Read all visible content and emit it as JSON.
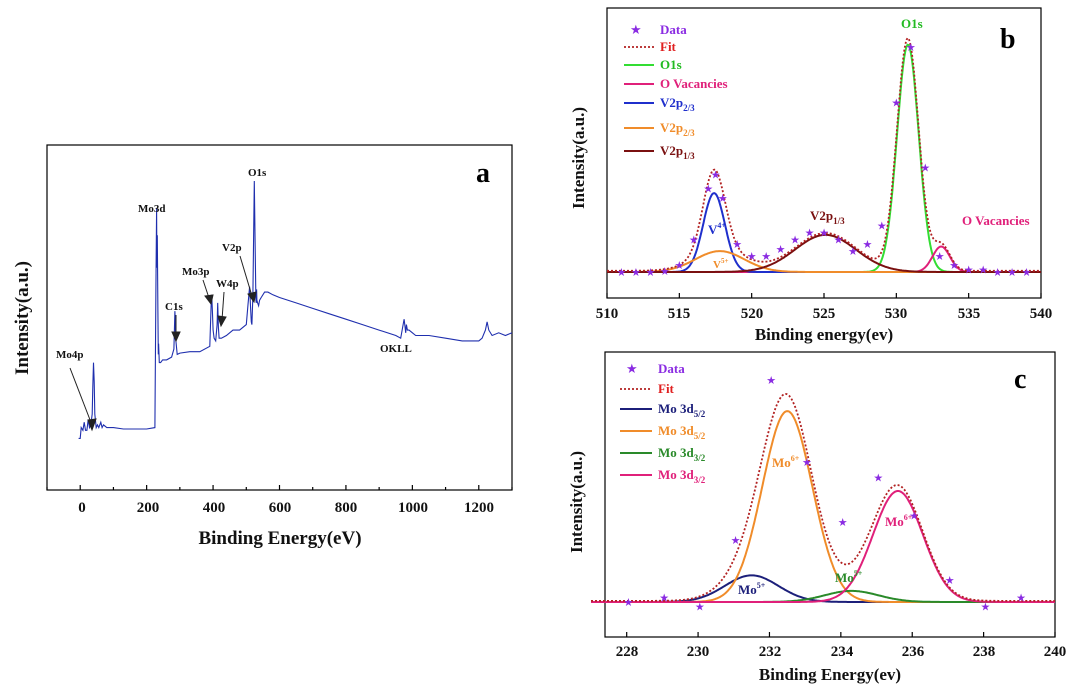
{
  "chart_data": [
    {
      "panel": "a",
      "type": "line",
      "xlabel": "Binding Energy(eV)",
      "ylabel": "Intensity(a.u.)",
      "xlim": [
        -100,
        1300
      ],
      "ylim": [
        0,
        100
      ],
      "xticks": [
        0,
        200,
        400,
        600,
        800,
        1000,
        1200
      ],
      "color": "#1f2fae",
      "series": [
        {
          "x": [
            -5,
            0,
            3,
            8,
            12,
            16,
            20,
            24,
            28,
            32,
            36,
            38,
            40,
            42,
            44,
            48,
            52,
            56,
            62,
            66,
            70,
            80,
            100,
            130,
            160,
            200,
            225,
            228,
            230,
            231,
            232,
            234,
            235,
            236,
            238,
            242,
            248,
            260,
            275,
            282,
            285,
            288,
            292,
            300,
            330,
            360,
            390,
            394,
            396,
            398,
            400,
            403,
            408,
            412,
            414,
            416,
            418,
            420,
            425,
            440,
            460,
            480,
            500,
            505,
            510,
            513,
            515,
            517,
            520,
            524,
            527,
            529,
            530,
            531,
            532,
            534,
            537,
            540,
            545,
            555,
            565,
            580,
            600,
            650,
            700,
            750,
            800,
            850,
            900,
            950,
            965,
            975,
            978,
            980,
            982,
            985,
            990,
            1000,
            1010,
            1050,
            1100,
            1150,
            1200,
            1210,
            1220,
            1225,
            1230,
            1240,
            1260,
            1280,
            1300
          ],
          "y": [
            5,
            5,
            9,
            8,
            11,
            8,
            8,
            12,
            9,
            10,
            14,
            24,
            33,
            26,
            14,
            9,
            10,
            9,
            11,
            9,
            10,
            9,
            9,
            8.5,
            8.5,
            8.5,
            9,
            60,
            90,
            68,
            80,
            52,
            36,
            40,
            33,
            33,
            34,
            34,
            35,
            38,
            52,
            41,
            36,
            36.5,
            37,
            37,
            39,
            54,
            58,
            52,
            45,
            42,
            41,
            47,
            55,
            46,
            42,
            42,
            42,
            43,
            45,
            45,
            47,
            54,
            61,
            53,
            48,
            47,
            58,
            100,
            72,
            56,
            55,
            60,
            56,
            55,
            54,
            56,
            57,
            59,
            59,
            58,
            57,
            55,
            53,
            51,
            49,
            47,
            45,
            43,
            42,
            49,
            46,
            44,
            47,
            45,
            45,
            44,
            43,
            43,
            42,
            41,
            41,
            42,
            45,
            48,
            45,
            43,
            44,
            43,
            44
          ]
        }
      ],
      "annotations": [
        "Mo4p",
        "Mo3d",
        "C1s",
        "Mo3p",
        "W4p",
        "V2p",
        "O1s",
        "OKLL"
      ]
    },
    {
      "panel": "b",
      "type": "line",
      "xlabel": "Binding energy(ev)",
      "ylabel": "Intensity(a.u.)",
      "xlim": [
        510,
        540
      ],
      "ylim": [
        0,
        100
      ],
      "xticks": [
        510,
        515,
        520,
        525,
        530,
        535,
        540
      ],
      "legend": [
        "Data",
        "Fit",
        "O1s",
        "O Vacancies",
        "V2p2/3",
        "V2p2/3",
        "V2p1/3"
      ],
      "data_points": {
        "x": [
          511,
          512,
          513,
          514,
          515,
          516,
          517,
          517.5,
          518,
          519,
          520,
          521,
          522,
          523,
          524,
          525,
          526,
          527,
          528,
          529,
          530,
          531,
          532,
          533,
          534,
          535,
          536,
          537,
          538,
          539
        ],
        "y": [
          0,
          0,
          0,
          0.5,
          3,
          14,
          36,
          42,
          32,
          12,
          7,
          7,
          10,
          14,
          17,
          17,
          14,
          9,
          12,
          20,
          73,
          97,
          45,
          7,
          3,
          1,
          1,
          0,
          0,
          0
        ]
      },
      "peaks": [
        {
          "name": "O1s",
          "color": "#33dd33",
          "center": 530.8,
          "height": 98,
          "width": 0.75
        },
        {
          "name": "O Vacancies",
          "color": "#e0207a",
          "center": 533.1,
          "height": 11,
          "width": 0.6
        },
        {
          "name": "V2p2/3",
          "color": "#1f2fcc",
          "center": 517.4,
          "height": 34,
          "width": 0.75
        },
        {
          "name": "V2p2/3",
          "color": "#f08c2a",
          "center": 517.8,
          "height": 9,
          "width": 1.7
        },
        {
          "name": "V2p1/3",
          "color": "#7a1010",
          "center": 525.1,
          "height": 16,
          "width": 2.1
        }
      ],
      "annotations": [
        "O1s",
        "O Vacancies",
        "V4+",
        "V5+",
        "V2p1/3"
      ]
    },
    {
      "panel": "c",
      "type": "line",
      "xlabel": "Binding Energy(ev)",
      "ylabel": "Intensity(a.u.)",
      "xlim": [
        227,
        240
      ],
      "ylim": [
        0,
        100
      ],
      "xticks": [
        228,
        230,
        232,
        234,
        236,
        238,
        240
      ],
      "legend": [
        "Data",
        "Fit",
        "Mo 3d5/2",
        "Mo 3d5/2",
        "Mo 3d3/2",
        "Mo 3d3/2"
      ],
      "data_points": {
        "x": [
          228.05,
          229.05,
          230.05,
          231.05,
          232.05,
          233.05,
          234.05,
          235.05,
          236.05,
          237.05,
          238.05,
          239.05
        ],
        "y": [
          0,
          2,
          -2,
          28,
          100,
          63,
          36,
          56,
          39,
          10,
          -2,
          2
        ]
      },
      "peaks": [
        {
          "name": "Mo 3d5/2",
          "color": "#1c1f7a",
          "center": 231.5,
          "height": 12,
          "width": 0.75
        },
        {
          "name": "Mo 3d5/2",
          "color": "#f08c2a",
          "center": 232.5,
          "height": 86,
          "width": 0.7
        },
        {
          "name": "Mo 3d3/2",
          "color": "#2a8a2a",
          "center": 234.3,
          "height": 5,
          "width": 0.75
        },
        {
          "name": "Mo 3d3/2",
          "color": "#e0207a",
          "center": 235.6,
          "height": 50,
          "width": 0.7
        }
      ],
      "annotations": [
        "Mo6+",
        "Mo6+",
        "Mo5+",
        "Mo5+"
      ]
    }
  ],
  "panel_a": {
    "letter": "a",
    "xlabel": "Binding Energy(eV)",
    "ylabel": "Intensity(a.u.)",
    "ticks": [
      "0",
      "200",
      "400",
      "600",
      "800",
      "1000",
      "1200"
    ],
    "labels": {
      "mo4p": "Mo4p",
      "mo3d": "Mo3d",
      "c1s": "C1s",
      "mo3p": "Mo3p",
      "w4p": "W4p",
      "v2p": "V2p",
      "o1s": "O1s",
      "okll": "OKLL"
    }
  },
  "panel_b": {
    "letter": "b",
    "xlabel": "Binding energy(ev)",
    "ylabel": "Intensity(a.u.)",
    "ticks": [
      "510",
      "515",
      "520",
      "525",
      "530",
      "535",
      "540"
    ],
    "legend": {
      "data": "Data",
      "fit": "Fit",
      "o1s": "O1s",
      "ovac": "O Vacancies",
      "v2p_base": "V2p",
      "v2p_sub_a": "2/3",
      "v2p_sub_b": "2/3",
      "v2p_sub_c": "1/3"
    },
    "labels": {
      "o1s": "O1s",
      "ovac": "O Vacancies",
      "v4_base": "V",
      "v4_sup": "4+",
      "v5_base": "V",
      "v5_sup": "5+",
      "v2p_base": "V2p",
      "v2p_sub": "1/3"
    },
    "colors": {
      "data": "#8a2be2",
      "fit": "#b22222",
      "o1s": "#33dd33",
      "ovac": "#e0207a",
      "v2p_a": "#1f2fcc",
      "v2p_b": "#f08c2a",
      "v2p_c": "#7a1010"
    }
  },
  "panel_c": {
    "letter": "c",
    "xlabel": "Binding Energy(ev)",
    "ylabel": "Intensity(a.u.)",
    "ticks": [
      "228",
      "230",
      "232",
      "234",
      "236",
      "238",
      "240"
    ],
    "legend": {
      "data": "Data",
      "fit": "Fit",
      "base": "Mo 3d",
      "sub_a": "5/2",
      "sub_b": "5/2",
      "sub_c": "3/2",
      "sub_d": "3/2"
    },
    "labels": {
      "mo_base": "Mo",
      "sup6": "6+",
      "sup5": "5+"
    },
    "colors": {
      "data": "#8a2be2",
      "fit": "#b22222",
      "a": "#1c1f7a",
      "b": "#f08c2a",
      "c": "#2a8a2a",
      "d": "#e0207a"
    }
  }
}
